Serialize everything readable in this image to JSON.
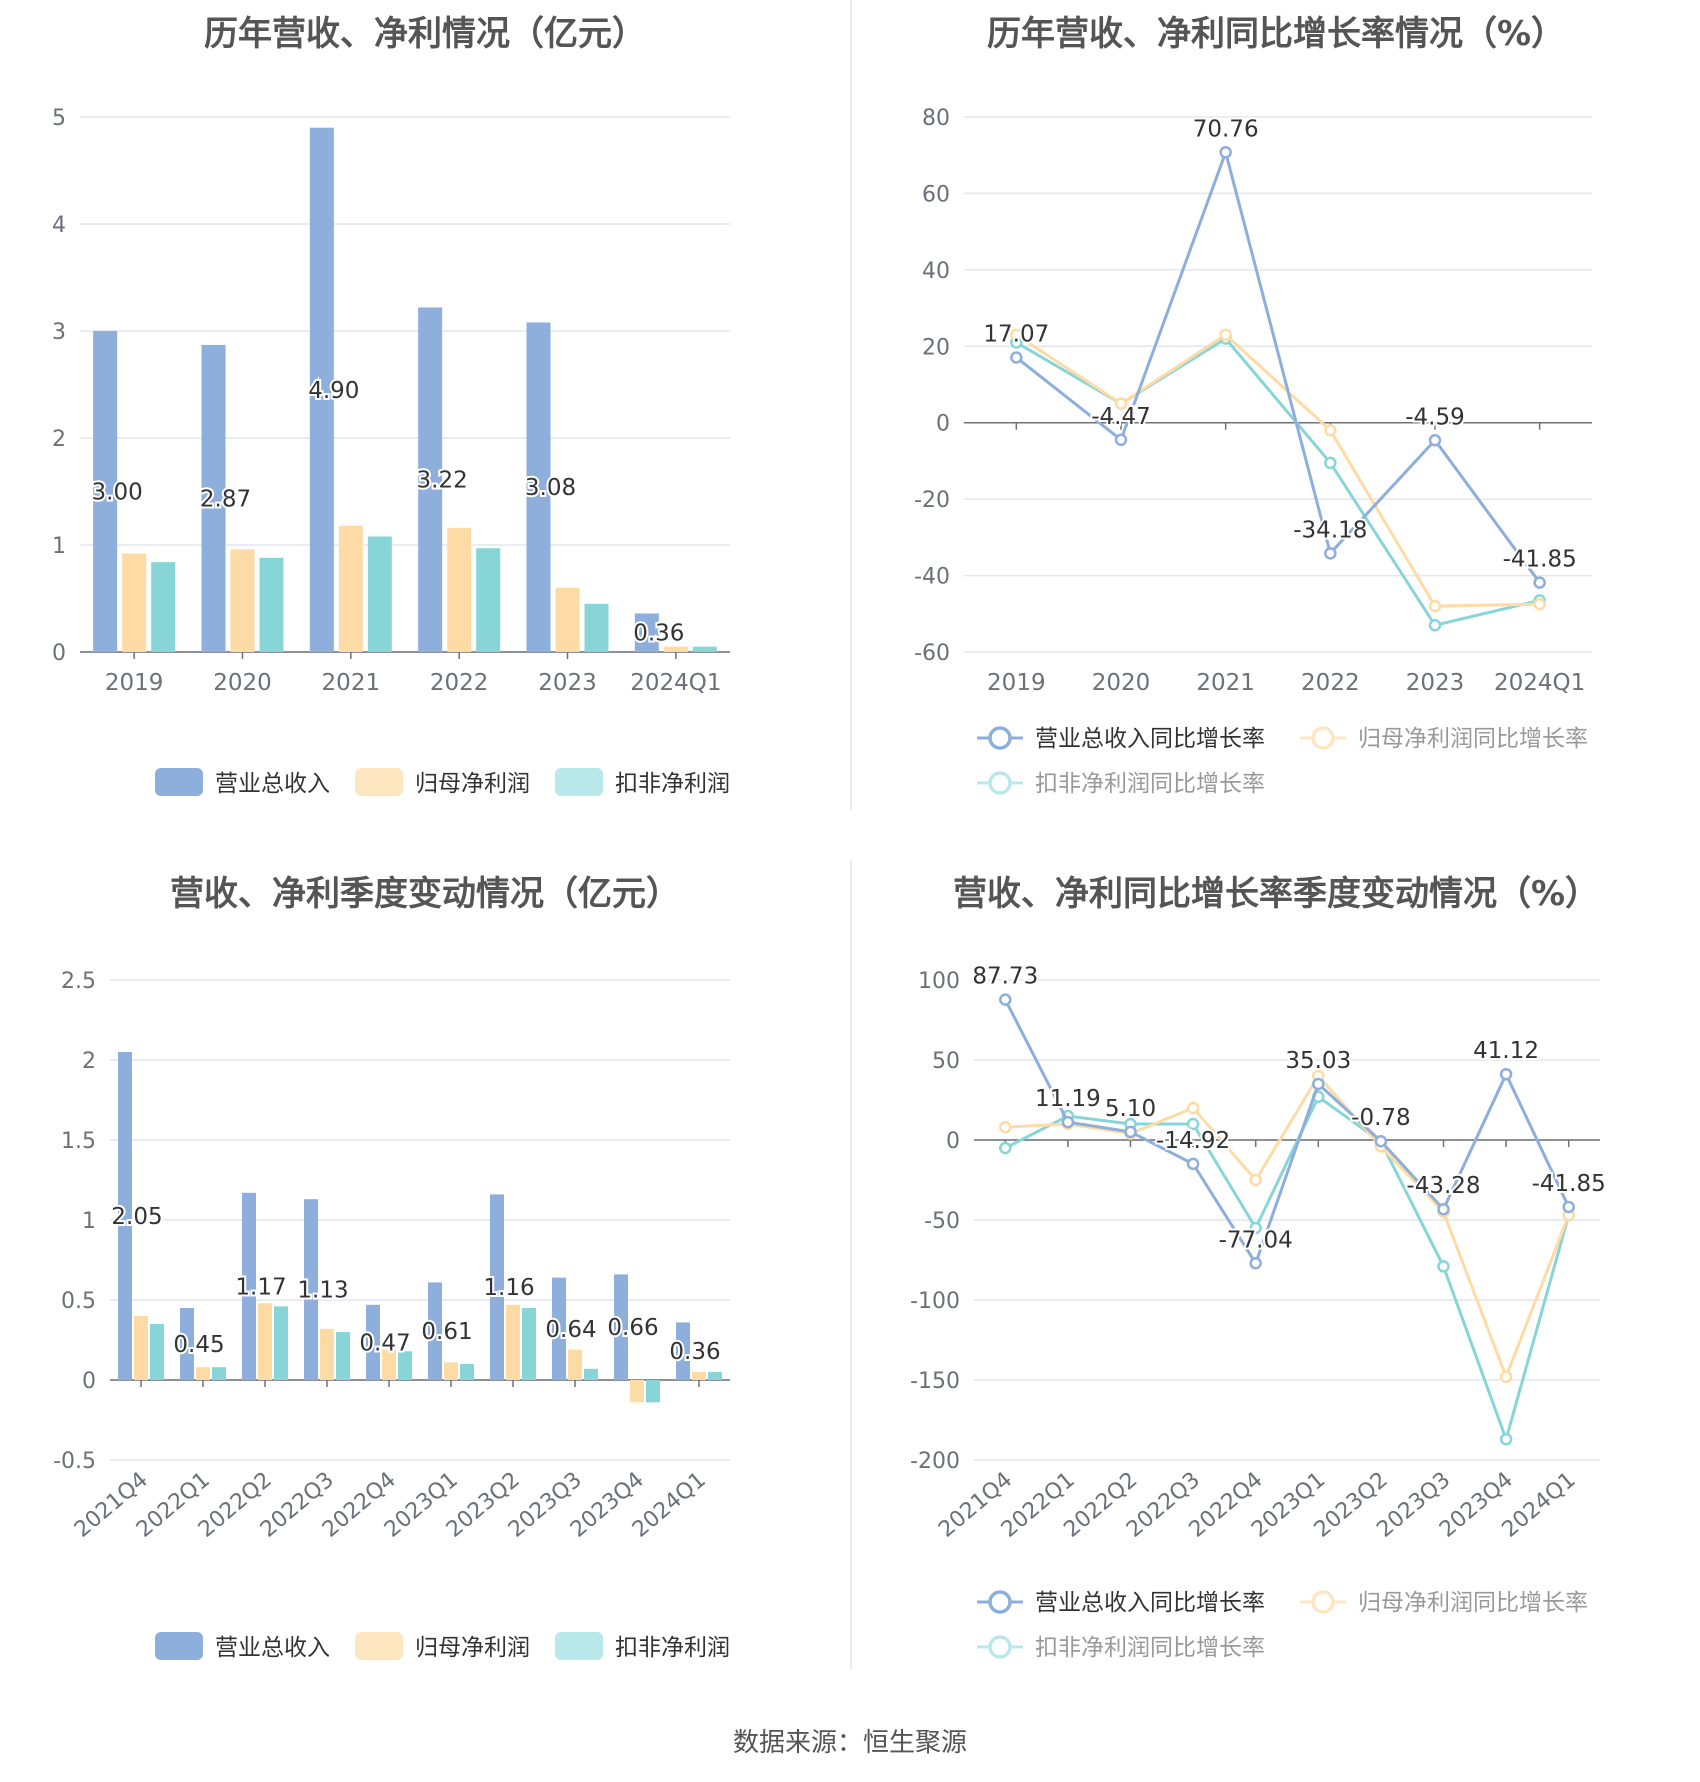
{
  "colors": {
    "revenue": "#8eaedc",
    "parent_profit": "#fedba4",
    "deducted_profit": "#88d5d8",
    "legend_revenue": "#8eaedc",
    "legend_parent": "#fde6c0",
    "legend_deducted": "#b9e8ea",
    "grid": "#e3e6f0",
    "axis_text": "#6e7079",
    "label_text": "#333333"
  },
  "source_text": "数据来源：恒生聚源",
  "chart_data": [
    {
      "id": "annual-amounts",
      "type": "bar",
      "title": "历年营收、净利情况（亿元）",
      "categories": [
        "2019",
        "2020",
        "2021",
        "2022",
        "2023",
        "2024Q1"
      ],
      "ylim": [
        0,
        5
      ],
      "yticks": [
        0,
        1,
        2,
        3,
        4,
        5
      ],
      "ytick_labels": [
        "0",
        "1",
        "2",
        "3",
        "4",
        "5"
      ],
      "grid": true,
      "legend_position": "bottom",
      "series": [
        {
          "name": "营业总收入",
          "color_key": "revenue",
          "legend_color_key": "legend_revenue",
          "values": [
            3.0,
            2.87,
            4.9,
            3.22,
            3.08,
            0.36
          ],
          "labels": [
            "3.00",
            "2.87",
            "4.90",
            "3.22",
            "3.08",
            "0.36"
          ]
        },
        {
          "name": "归母净利润",
          "color_key": "parent_profit",
          "legend_color_key": "legend_parent",
          "values": [
            0.92,
            0.96,
            1.18,
            1.16,
            0.6,
            0.05
          ]
        },
        {
          "name": "扣非净利润",
          "color_key": "deducted_profit",
          "legend_color_key": "legend_deducted",
          "values": [
            0.84,
            0.88,
            1.08,
            0.97,
            0.45,
            0.05
          ]
        }
      ]
    },
    {
      "id": "annual-growth",
      "type": "line",
      "title": "历年营收、净利同比增长率情况（%）",
      "categories": [
        "2019",
        "2020",
        "2021",
        "2022",
        "2023",
        "2024Q1"
      ],
      "ylim": [
        -60,
        80
      ],
      "yticks": [
        -60,
        -40,
        -20,
        0,
        20,
        40,
        60,
        80
      ],
      "ytick_labels": [
        "-60",
        "-40",
        "-20",
        "0",
        "20",
        "40",
        "60",
        "80"
      ],
      "grid": true,
      "legend_position": "bottom",
      "series": [
        {
          "name": "营业总收入同比增长率",
          "color_key": "revenue",
          "legend_color_key": "legend_revenue",
          "values": [
            17.07,
            -4.47,
            70.76,
            -34.18,
            -4.59,
            -41.85
          ],
          "labels": [
            "17.07",
            "-4.47",
            "70.76",
            "-34.18",
            "-4.59",
            "-41.85"
          ]
        },
        {
          "name": "归母净利润同比增长率",
          "color_key": "parent_profit",
          "legend_color_key": "legend_parent",
          "values": [
            23.0,
            5.0,
            23.0,
            -2.0,
            -48.0,
            -47.5
          ]
        },
        {
          "name": "扣非净利润同比增长率",
          "color_key": "deducted_profit",
          "legend_color_key": "legend_deducted",
          "values": [
            21.0,
            5.0,
            22.0,
            -10.5,
            -53.0,
            -46.5
          ]
        }
      ]
    },
    {
      "id": "quarterly-amounts",
      "type": "bar",
      "title": "营收、净利季度变动情况（亿元）",
      "categories": [
        "2021Q4",
        "2022Q1",
        "2022Q2",
        "2022Q3",
        "2022Q4",
        "2023Q1",
        "2023Q2",
        "2023Q3",
        "2023Q4",
        "2024Q1"
      ],
      "ylim": [
        -0.5,
        2.5
      ],
      "yticks": [
        -0.5,
        0,
        0.5,
        1,
        1.5,
        2,
        2.5
      ],
      "ytick_labels": [
        "-0.5",
        "0",
        "0.5",
        "1",
        "1.5",
        "2",
        "2.5"
      ],
      "grid": true,
      "legend_position": "bottom",
      "series": [
        {
          "name": "营业总收入",
          "color_key": "revenue",
          "legend_color_key": "legend_revenue",
          "values": [
            2.05,
            0.45,
            1.17,
            1.13,
            0.47,
            0.61,
            1.16,
            0.64,
            0.66,
            0.36
          ],
          "labels": [
            "2.05",
            "0.45",
            "1.17",
            "1.13",
            "0.47",
            "0.61",
            "1.16",
            "0.64",
            "0.66",
            "0.36"
          ]
        },
        {
          "name": "归母净利润",
          "color_key": "parent_profit",
          "legend_color_key": "legend_parent",
          "values": [
            0.4,
            0.08,
            0.48,
            0.32,
            0.19,
            0.11,
            0.47,
            0.19,
            -0.14,
            0.05
          ]
        },
        {
          "name": "扣非净利润",
          "color_key": "deducted_profit",
          "legend_color_key": "legend_deducted",
          "values": [
            0.35,
            0.08,
            0.46,
            0.3,
            0.18,
            0.1,
            0.45,
            0.07,
            -0.14,
            0.05
          ]
        }
      ]
    },
    {
      "id": "quarterly-growth",
      "type": "line",
      "title": "营收、净利同比增长率季度变动情况（%）",
      "categories": [
        "2021Q4",
        "2022Q1",
        "2022Q2",
        "2022Q3",
        "2022Q4",
        "2023Q1",
        "2023Q2",
        "2023Q3",
        "2023Q4",
        "2024Q1"
      ],
      "ylim": [
        -200,
        100
      ],
      "yticks": [
        -200,
        -150,
        -100,
        -50,
        0,
        50,
        100
      ],
      "ytick_labels": [
        "-200",
        "-150",
        "-100",
        "-50",
        "0",
        "50",
        "100"
      ],
      "grid": true,
      "legend_position": "bottom",
      "series": [
        {
          "name": "营业总收入同比增长率",
          "color_key": "revenue",
          "legend_color_key": "legend_revenue",
          "values": [
            87.73,
            11.19,
            5.1,
            -14.92,
            -77.04,
            35.03,
            -0.78,
            -43.28,
            41.12,
            -41.85
          ],
          "labels": [
            "87.73",
            "11.19",
            "5.10",
            "-14.92",
            "-77.04",
            "35.03",
            "-0.78",
            "-43.28",
            "41.12",
            "-41.85"
          ]
        },
        {
          "name": "归母净利润同比增长率",
          "color_key": "parent_profit",
          "legend_color_key": "legend_parent",
          "values": [
            8,
            10,
            4,
            20,
            -25,
            40,
            -4,
            -45,
            -148,
            -47
          ]
        },
        {
          "name": "扣非净利润同比增长率",
          "color_key": "deducted_profit",
          "legend_color_key": "legend_deducted",
          "values": [
            -5,
            15,
            10,
            10,
            -55,
            27,
            -1,
            -79,
            -187,
            -47
          ]
        }
      ]
    }
  ]
}
